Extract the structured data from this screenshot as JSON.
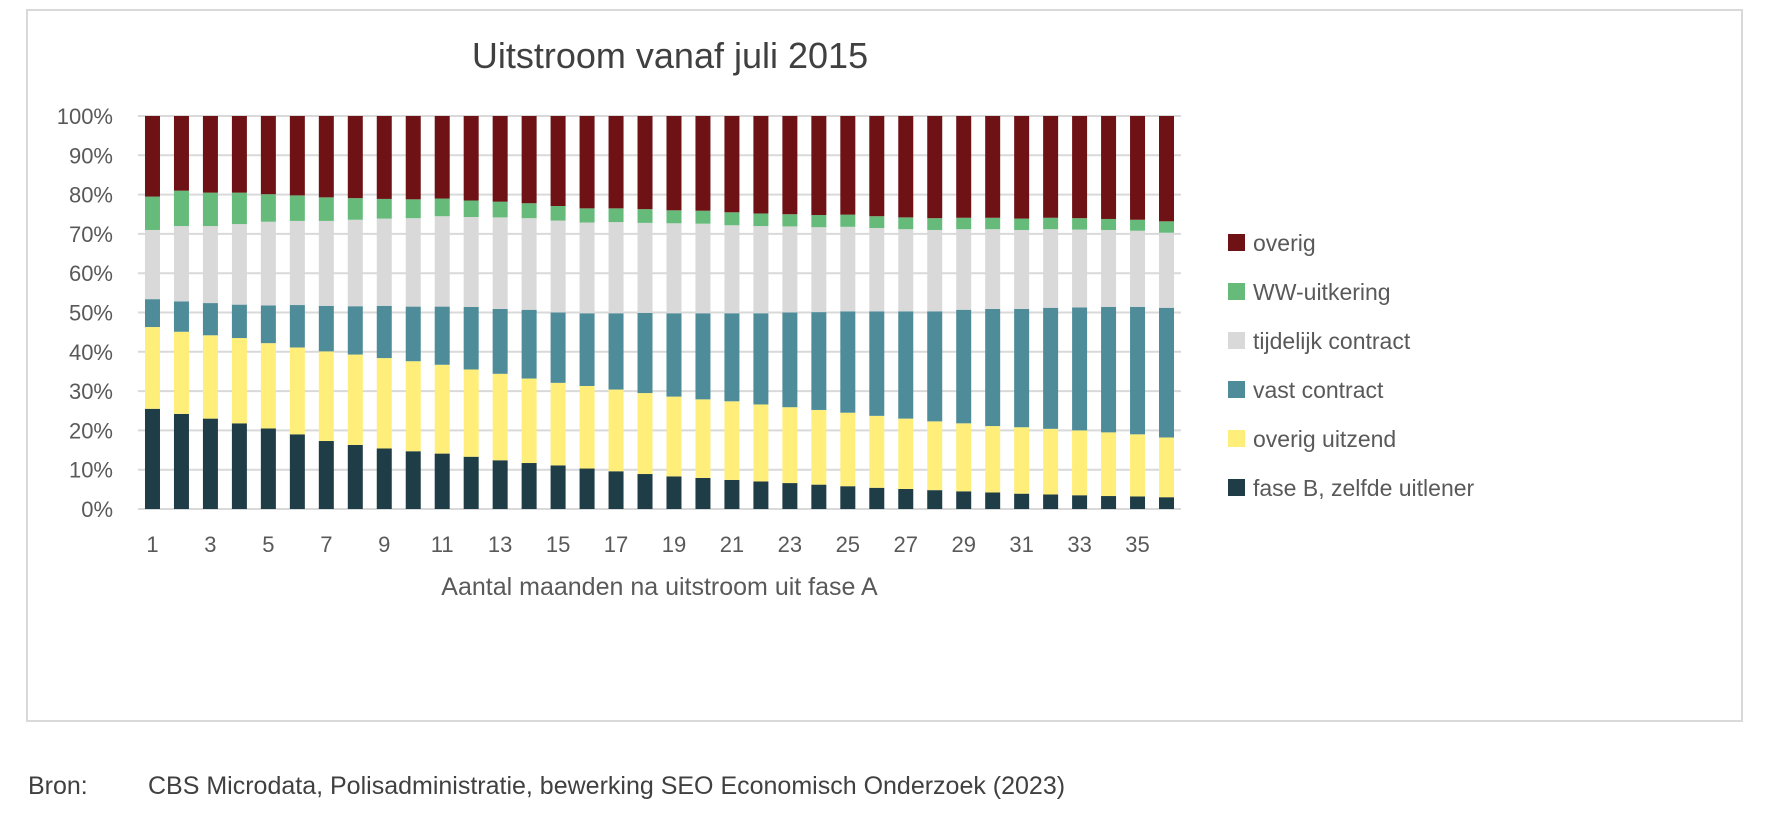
{
  "chart_data": {
    "type": "bar",
    "stacked": true,
    "normalized": true,
    "title": "Uitstroom vanaf juli 2015",
    "xlabel": "Aantal maanden na uitstroom uit fase A",
    "ylabel": "",
    "ylim": [
      0,
      100
    ],
    "yticks": [
      "0%",
      "10%",
      "20%",
      "30%",
      "40%",
      "50%",
      "60%",
      "70%",
      "80%",
      "90%",
      "100%"
    ],
    "xticks": [
      "1",
      "3",
      "5",
      "7",
      "9",
      "11",
      "13",
      "15",
      "17",
      "19",
      "21",
      "23",
      "25",
      "27",
      "29",
      "31",
      "33",
      "35"
    ],
    "categories": [
      "1",
      "2",
      "3",
      "4",
      "5",
      "6",
      "7",
      "8",
      "9",
      "10",
      "11",
      "12",
      "13",
      "14",
      "15",
      "16",
      "17",
      "18",
      "19",
      "20",
      "21",
      "22",
      "23",
      "24",
      "25",
      "26",
      "27",
      "28",
      "29",
      "30",
      "31",
      "32",
      "33",
      "34",
      "35",
      "36"
    ],
    "legend_position": "right",
    "grid": true,
    "series": [
      {
        "name": "fase B, zelfde uitlener",
        "color": "#1f3d47",
        "values": [
          25.5,
          24.2,
          23.0,
          21.8,
          20.5,
          19.0,
          17.3,
          16.3,
          15.4,
          14.7,
          14.1,
          13.3,
          12.4,
          11.7,
          11.1,
          10.3,
          9.6,
          8.9,
          8.3,
          7.9,
          7.4,
          7.0,
          6.6,
          6.2,
          5.8,
          5.4,
          5.1,
          4.8,
          4.5,
          4.2,
          3.9,
          3.7,
          3.5,
          3.3,
          3.2,
          3.0
        ]
      },
      {
        "name": "overig uitzend",
        "color": "#ffef7a",
        "values": [
          20.8,
          20.9,
          21.2,
          21.7,
          21.7,
          22.1,
          22.8,
          23.0,
          23.0,
          22.9,
          22.6,
          22.2,
          22.0,
          21.5,
          21.0,
          21.0,
          20.8,
          20.6,
          20.3,
          20.0,
          20.0,
          19.6,
          19.3,
          19.0,
          18.7,
          18.3,
          17.9,
          17.5,
          17.3,
          16.9,
          16.9,
          16.7,
          16.5,
          16.2,
          15.8,
          15.2
        ]
      },
      {
        "name": "vast contract",
        "color": "#4e8c99",
        "values": [
          7.1,
          7.7,
          8.2,
          8.5,
          9.6,
          10.8,
          11.6,
          12.3,
          13.3,
          13.9,
          14.8,
          15.9,
          16.5,
          17.5,
          17.9,
          18.5,
          19.4,
          20.4,
          21.2,
          21.9,
          22.4,
          23.2,
          24.1,
          24.9,
          25.8,
          26.6,
          27.3,
          28.0,
          28.9,
          29.8,
          30.1,
          30.8,
          31.3,
          31.9,
          32.4,
          33.0
        ]
      },
      {
        "name": "tijdelijk contract",
        "color": "#d9d9d9",
        "values": [
          17.6,
          19.2,
          19.6,
          20.5,
          21.3,
          21.4,
          21.6,
          22.0,
          22.2,
          22.5,
          23.0,
          22.9,
          23.3,
          23.3,
          23.4,
          23.1,
          23.2,
          22.9,
          22.9,
          22.8,
          22.4,
          22.2,
          21.9,
          21.6,
          21.5,
          21.2,
          20.9,
          20.7,
          20.5,
          20.3,
          20.1,
          20.0,
          19.8,
          19.6,
          19.4,
          19.1
        ]
      },
      {
        "name": "WW-uitkering",
        "color": "#66bb7a",
        "values": [
          8.5,
          9.0,
          8.5,
          8.0,
          7.0,
          6.5,
          6.0,
          5.5,
          5.0,
          4.8,
          4.5,
          4.2,
          4.0,
          3.8,
          3.7,
          3.6,
          3.5,
          3.5,
          3.3,
          3.3,
          3.3,
          3.2,
          3.1,
          3.1,
          3.1,
          3.0,
          3.0,
          3.0,
          2.9,
          2.9,
          2.9,
          2.9,
          2.9,
          2.8,
          2.8,
          2.9
        ]
      },
      {
        "name": "overig",
        "color": "#6e1216",
        "values": [
          20.5,
          19.0,
          19.5,
          19.5,
          19.9,
          20.2,
          20.7,
          20.9,
          21.1,
          21.2,
          21.0,
          21.5,
          21.8,
          22.2,
          22.9,
          23.5,
          23.5,
          23.7,
          24.0,
          24.1,
          24.5,
          24.8,
          25.0,
          25.2,
          25.1,
          25.5,
          25.8,
          26.0,
          25.9,
          25.9,
          26.1,
          25.9,
          26.0,
          26.2,
          26.4,
          26.8
        ]
      }
    ],
    "legend_order": [
      "overig",
      "WW-uitkering",
      "tijdelijk contract",
      "vast contract",
      "overig uitzend",
      "fase B, zelfde uitlener"
    ]
  },
  "source": {
    "label": "Bron:",
    "text": "CBS Microdata, Polisadministratie, bewerking SEO Economisch Onderzoek (2023)"
  }
}
